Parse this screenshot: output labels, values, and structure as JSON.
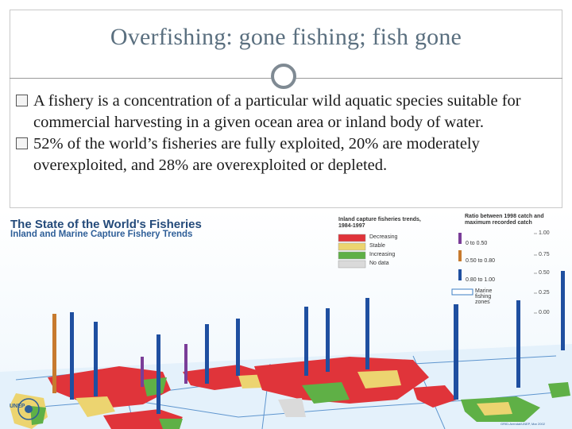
{
  "slide": {
    "title": "Overfishing: gone fishing; fish gone",
    "bullets": [
      {
        "icon": "checkbox-bullet-icon",
        "text": "A fishery is a concentration of a particular wild aquatic species suitable for commercial harvesting in a given ocean area or inland body of water."
      },
      {
        "icon": "checkbox-bullet-icon",
        "text": "52% of the world’s fisheries are fully exploited, 20% are moderately overexploited, and 28% are overexploited or depleted."
      }
    ]
  },
  "map": {
    "title": "The State of the World's Fisheries",
    "subtitle": "Inland and Marine Capture Fishery Trends",
    "trend_legend": {
      "heading": "Inland capture fisheries trends, 1984-1997",
      "items": [
        {
          "label": "Decreasing",
          "color": "#e0343a"
        },
        {
          "label": "Stable",
          "color": "#ecd470"
        },
        {
          "label": "Increasing",
          "color": "#5fb046"
        },
        {
          "label": "No data",
          "color": "#dadada"
        }
      ]
    },
    "ratio_legend": {
      "heading": "Ratio between 1998 catch and maximum recorded catch",
      "items": [
        {
          "label": "0 to 0.50",
          "color": "#7a3d98"
        },
        {
          "label": "0.50 to 0.80",
          "color": "#c77a2e"
        },
        {
          "label": "0.80 to 1.00",
          "color": "#1f4fa0"
        },
        {
          "label": "Marine fishing zones",
          "color": "#ffffff"
        }
      ],
      "scale": [
        "1.00",
        "0.75",
        "0.50",
        "0.25",
        "0.00"
      ]
    },
    "logo": "UNEP",
    "credit": "GRID-Arendal/UNEP, Mar 2002"
  }
}
